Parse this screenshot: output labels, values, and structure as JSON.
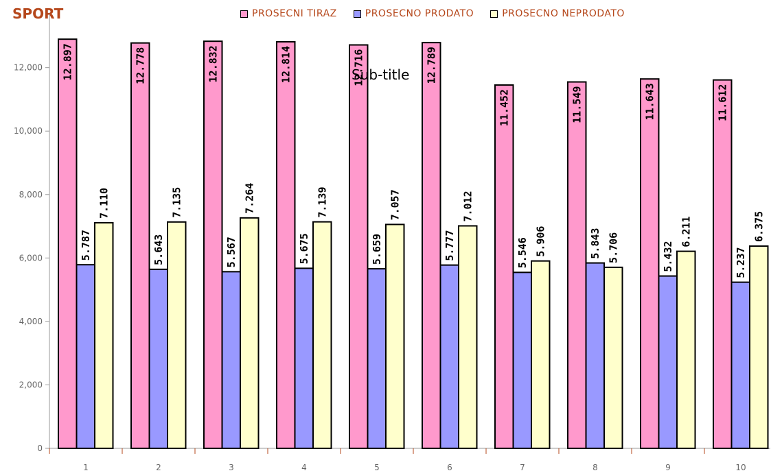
{
  "chart_data": {
    "type": "bar",
    "title": "SPORT",
    "subtitle": "Sub-title",
    "categories": [
      "1",
      "2",
      "3",
      "4",
      "5",
      "6",
      "7",
      "8",
      "9",
      "10"
    ],
    "series": [
      {
        "name": "PROSECNI TIRAZ",
        "color": "#ff99cc",
        "values": [
          12897,
          12778,
          12832,
          12814,
          12716,
          12789,
          11452,
          11549,
          11643,
          11612
        ],
        "labels": [
          "12.897",
          "12.778",
          "12.832",
          "12.814",
          "12.716",
          "12.789",
          "11.452",
          "11.549",
          "11.643",
          "11.612"
        ]
      },
      {
        "name": "PROSECNO PRODATO",
        "color": "#9999ff",
        "values": [
          5787,
          5643,
          5567,
          5675,
          5659,
          5777,
          5546,
          5843,
          5432,
          5237
        ],
        "labels": [
          "5.787",
          "5.643",
          "5.567",
          "5.675",
          "5.659",
          "5.777",
          "5.546",
          "5.843",
          "5.432",
          "5.237"
        ]
      },
      {
        "name": "PROSECNO NEPRODATO",
        "color": "#ffffcc",
        "values": [
          7110,
          7135,
          7264,
          7139,
          7057,
          7012,
          5906,
          5706,
          6211,
          6375
        ],
        "labels": [
          "7.110",
          "7.135",
          "7.264",
          "7.139",
          "7.057",
          "7.012",
          "5.906",
          "5.706",
          "6.211",
          "6.375"
        ]
      }
    ],
    "ylim": [
      0,
      13000
    ],
    "yticks": [
      0,
      2000,
      4000,
      6000,
      8000,
      10000,
      12000
    ],
    "ytick_labels": [
      "0",
      "2,000",
      "4,000",
      "6,000",
      "8,000",
      "10,000",
      "12,000"
    ],
    "legend_position": "top",
    "grid": false
  }
}
